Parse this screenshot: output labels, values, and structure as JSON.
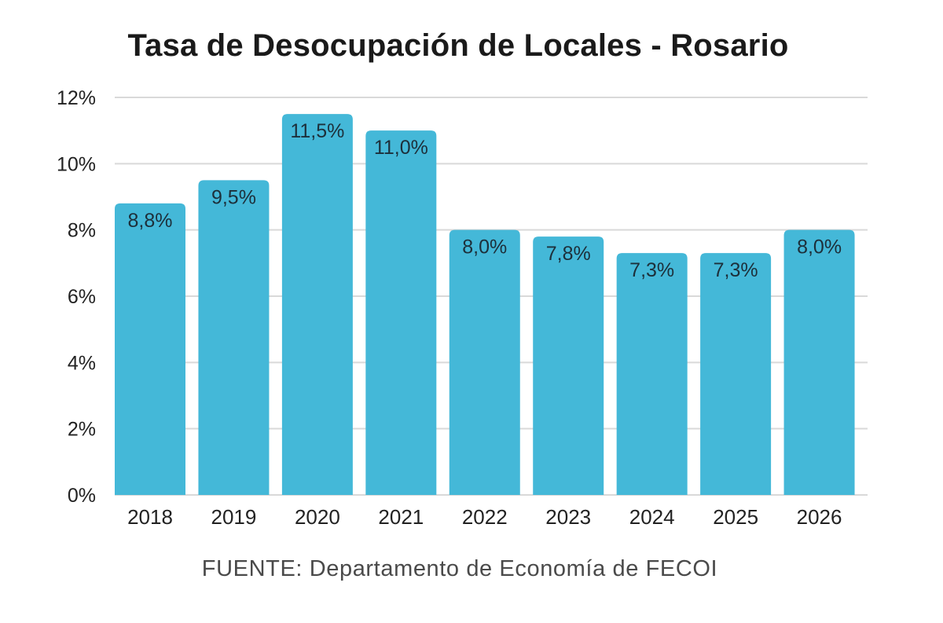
{
  "chart_data": {
    "type": "bar",
    "title": "Tasa de Desocupación de Locales - Rosario",
    "xlabel": "",
    "ylabel": "",
    "categories": [
      "2018",
      "2019",
      "2020",
      "2021",
      "2022",
      "2023",
      "2024",
      "2025",
      "2026"
    ],
    "values": [
      8.8,
      9.5,
      11.5,
      11.0,
      8.0,
      7.8,
      7.3,
      7.3,
      8.0
    ],
    "data_labels": [
      "8,8%",
      "9,5%",
      "11,5%",
      "11,0%",
      "8,0%",
      "7,8%",
      "7,3%",
      "7,3%",
      "8,0%"
    ],
    "ylim": [
      0,
      12
    ],
    "yticks": [
      0,
      2,
      4,
      6,
      8,
      10,
      12
    ],
    "ytick_labels": [
      "0%",
      "2%",
      "4%",
      "6%",
      "8%",
      "10%",
      "12%"
    ],
    "grid": true,
    "legend": "none",
    "bar_color": "#44b8d8",
    "grid_color": "#d9d9d9"
  },
  "source_note": "FUENTE: Departamento de Economía de FECOI"
}
